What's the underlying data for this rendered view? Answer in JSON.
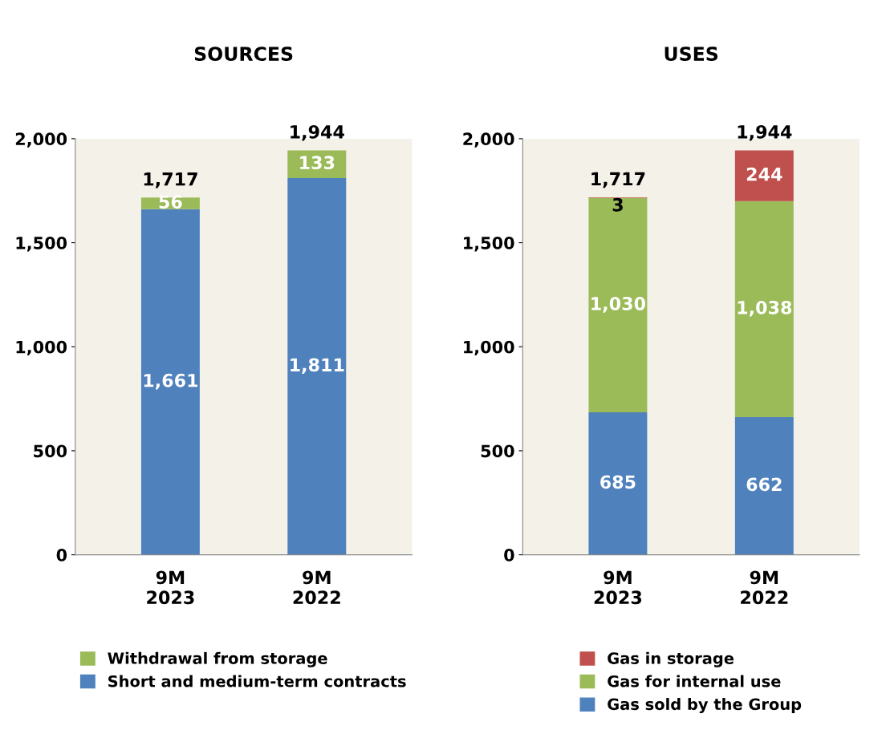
{
  "chart_data": [
    {
      "type": "bar",
      "title": "SOURCES",
      "stacked": true,
      "categories": [
        "9M\n2023",
        "9M\n2022"
      ],
      "ylim": [
        0,
        2000
      ],
      "yticks": [
        0,
        {
          "value": 500,
          "label": "500"
        },
        {
          "value": 1000,
          "label": "1,000"
        },
        {
          "value": 1500,
          "label": "1,500"
        },
        {
          "value": 2000,
          "label": "2,000"
        }
      ],
      "data_labels": true,
      "legend": "bottom",
      "totals": [
        "1,717",
        "1,944"
      ],
      "series": [
        {
          "name": "Short and medium-term contracts",
          "color": "#4f81bd",
          "values": [
            1661,
            1811
          ],
          "value_labels": [
            "1,661",
            "1,811"
          ]
        },
        {
          "name": "Withdrawal from storage",
          "color": "#9bbb59",
          "values": [
            56,
            133
          ],
          "value_labels": [
            "56",
            "133"
          ]
        }
      ]
    },
    {
      "type": "bar",
      "title": "USES",
      "stacked": true,
      "categories": [
        "9M\n2023",
        "9M\n2022"
      ],
      "ylim": [
        0,
        2000
      ],
      "yticks": [
        0,
        {
          "value": 500,
          "label": "500"
        },
        {
          "value": 1000,
          "label": "1,000"
        },
        {
          "value": 1500,
          "label": "1,500"
        },
        {
          "value": 2000,
          "label": "2,000"
        }
      ],
      "data_labels": true,
      "legend": "bottom",
      "totals": [
        "1,717",
        "1,944"
      ],
      "series": [
        {
          "name": "Gas sold by the Group",
          "color": "#4f81bd",
          "values": [
            685,
            662
          ],
          "value_labels": [
            "685",
            "662"
          ]
        },
        {
          "name": "Gas for internal use",
          "color": "#9bbb59",
          "values": [
            1030,
            1038
          ],
          "value_labels": [
            "1,030",
            "1,038"
          ]
        },
        {
          "name": "Gas in storage",
          "color": "#c0504d",
          "values": [
            3,
            244
          ],
          "value_labels": [
            "3",
            "244"
          ]
        }
      ]
    }
  ]
}
